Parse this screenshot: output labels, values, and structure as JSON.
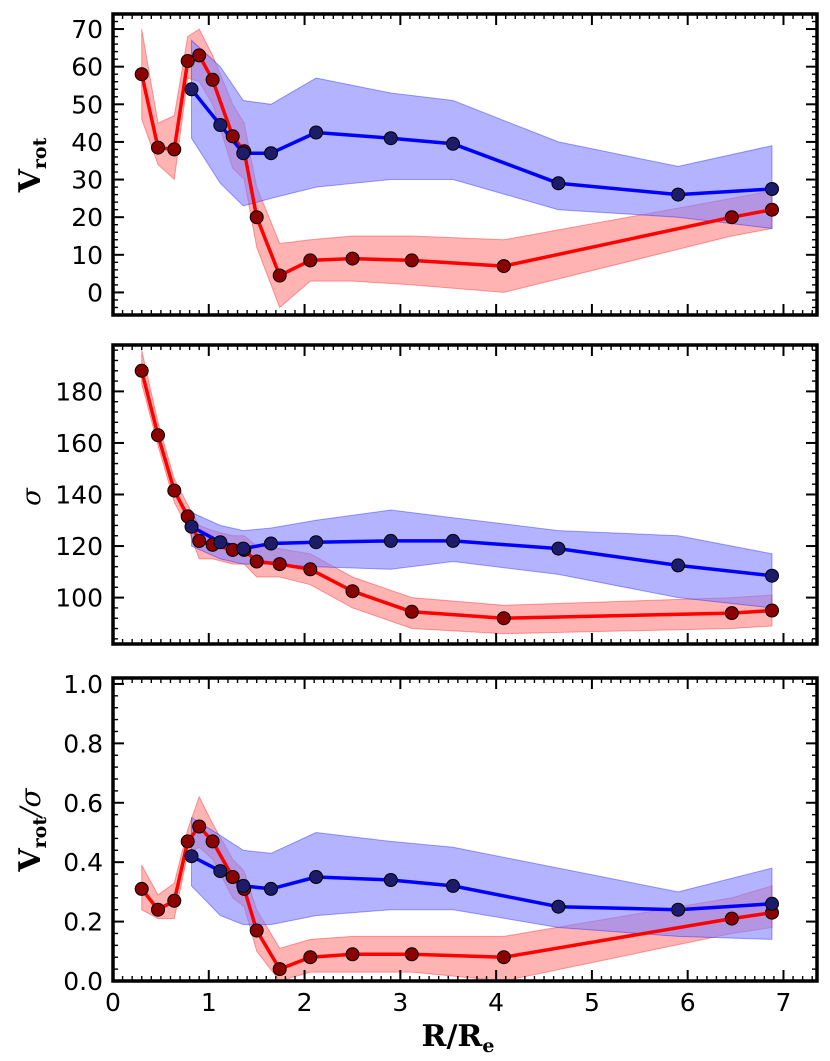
{
  "figure": {
    "xlabel_main": "R/R",
    "xlabel_sub": "e"
  },
  "colors": {
    "red_line": "#ff0000",
    "red_marker": "#8b0000",
    "red_band": "#ff8080",
    "blue_line": "#0000ff",
    "blue_marker": "#1c1c6b",
    "blue_band": "#8080ff"
  },
  "chart_data": [
    {
      "type": "line",
      "panel": "top",
      "ylabel_main": "V",
      "ylabel_sub": "rot",
      "ylabel_suffix": "",
      "xlim": [
        0,
        7.35
      ],
      "ylim": [
        -6,
        74
      ],
      "xticks": [
        "0",
        "1",
        "2",
        "3",
        "4",
        "5",
        "6",
        "7"
      ],
      "yticks": [
        "0",
        "10",
        "20",
        "30",
        "40",
        "50",
        "60",
        "70"
      ],
      "show_xtick_labels": false,
      "series": [
        {
          "name": "red",
          "x": [
            0.3,
            0.47,
            0.64,
            0.78,
            0.9,
            1.04,
            1.25,
            1.37,
            1.5,
            1.74,
            2.06,
            2.5,
            3.12,
            4.08,
            6.46,
            6.88
          ],
          "y": [
            58,
            38.5,
            38,
            61.5,
            63,
            56.5,
            41.5,
            37.5,
            20,
            4.5,
            8.5,
            9,
            8.5,
            7,
            20,
            22
          ],
          "band_lower": [
            46,
            34,
            30,
            57,
            56,
            50,
            33,
            30,
            12,
            -4,
            3,
            3,
            2,
            0,
            15,
            17
          ],
          "band_upper": [
            70,
            45,
            47,
            68,
            70,
            63,
            50,
            45,
            28,
            13,
            14,
            15,
            15,
            14,
            25,
            27
          ]
        },
        {
          "name": "blue",
          "x": [
            0.82,
            1.12,
            1.36,
            1.65,
            2.12,
            2.9,
            3.55,
            4.65,
            5.9,
            6.88
          ],
          "y": [
            54,
            44.5,
            37,
            37,
            42.5,
            41,
            39.5,
            29,
            26,
            27.5
          ],
          "band_lower": [
            41,
            29,
            23,
            25,
            28,
            30,
            30,
            22,
            20,
            17
          ],
          "band_upper": [
            67,
            60,
            51,
            50,
            57,
            53,
            51,
            40,
            33.5,
            39
          ]
        }
      ]
    },
    {
      "type": "line",
      "panel": "middle",
      "ylabel_main": "",
      "ylabel_sub": "",
      "ylabel_symbol": "σ",
      "xlim": [
        0,
        7.35
      ],
      "ylim": [
        82,
        198
      ],
      "xticks": [
        "0",
        "1",
        "2",
        "3",
        "4",
        "5",
        "6",
        "7"
      ],
      "yticks": [
        "100",
        "120",
        "140",
        "160",
        "180"
      ],
      "show_xtick_labels": false,
      "series": [
        {
          "name": "red",
          "x": [
            0.3,
            0.47,
            0.64,
            0.78,
            0.9,
            1.04,
            1.25,
            1.37,
            1.5,
            1.74,
            2.06,
            2.5,
            3.12,
            4.08,
            6.46,
            6.88
          ],
          "y": [
            188,
            163,
            141.5,
            131.5,
            122,
            120.5,
            118.5,
            118.5,
            114,
            113,
            111,
            102.5,
            94.5,
            92,
            94,
            95
          ],
          "band_lower": [
            183,
            159,
            137,
            127,
            115,
            115,
            113,
            113,
            108,
            108,
            105,
            96,
            88,
            86,
            88,
            89
          ],
          "band_upper": [
            196,
            168,
            146,
            136,
            128,
            126,
            124,
            124,
            120,
            119,
            117,
            108,
            100,
            97,
            100,
            101
          ]
        },
        {
          "name": "blue",
          "x": [
            0.82,
            1.12,
            1.36,
            1.65,
            2.12,
            2.9,
            3.55,
            4.65,
            5.9,
            6.88
          ],
          "y": [
            127.5,
            121.5,
            119,
            121,
            121.5,
            122,
            122,
            119,
            112.5,
            108.5
          ],
          "band_lower": [
            120,
            115,
            113,
            113,
            112,
            111,
            114,
            109,
            100,
            96
          ],
          "band_upper": [
            133,
            128,
            126,
            127,
            130,
            134,
            131,
            126,
            124,
            117
          ]
        }
      ]
    },
    {
      "type": "line",
      "panel": "bottom",
      "ylabel_main": "V",
      "ylabel_sub": "rot",
      "ylabel_suffix": "/σ",
      "xlim": [
        0,
        7.35
      ],
      "ylim": [
        0,
        1.02
      ],
      "xticks": [
        "0",
        "1",
        "2",
        "3",
        "4",
        "5",
        "6",
        "7"
      ],
      "yticks": [
        "0.0",
        "0.2",
        "0.4",
        "0.6",
        "0.8",
        "1.0"
      ],
      "show_xtick_labels": true,
      "series": [
        {
          "name": "red",
          "x": [
            0.3,
            0.47,
            0.64,
            0.78,
            0.9,
            1.04,
            1.25,
            1.37,
            1.5,
            1.74,
            2.06,
            2.5,
            3.12,
            4.08,
            6.46,
            6.88
          ],
          "y": [
            0.31,
            0.24,
            0.27,
            0.47,
            0.52,
            0.47,
            0.35,
            0.31,
            0.17,
            0.04,
            0.08,
            0.09,
            0.09,
            0.08,
            0.21,
            0.23
          ],
          "band_lower": [
            0.24,
            0.21,
            0.21,
            0.43,
            0.45,
            0.41,
            0.28,
            0.25,
            0.1,
            0.0,
            0.03,
            0.03,
            0.03,
            0.0,
            0.16,
            0.18
          ],
          "band_upper": [
            0.39,
            0.29,
            0.33,
            0.51,
            0.62,
            0.53,
            0.41,
            0.37,
            0.24,
            0.11,
            0.14,
            0.15,
            0.15,
            0.15,
            0.28,
            0.32
          ]
        },
        {
          "name": "blue",
          "x": [
            0.82,
            1.12,
            1.36,
            1.65,
            2.12,
            2.9,
            3.55,
            4.65,
            5.9,
            6.88
          ],
          "y": [
            0.42,
            0.37,
            0.32,
            0.31,
            0.35,
            0.34,
            0.32,
            0.25,
            0.24,
            0.26
          ],
          "band_lower": [
            0.32,
            0.22,
            0.19,
            0.19,
            0.22,
            0.24,
            0.24,
            0.18,
            0.15,
            0.14
          ],
          "band_upper": [
            0.55,
            0.49,
            0.44,
            0.43,
            0.5,
            0.47,
            0.45,
            0.38,
            0.3,
            0.38
          ]
        }
      ]
    }
  ]
}
